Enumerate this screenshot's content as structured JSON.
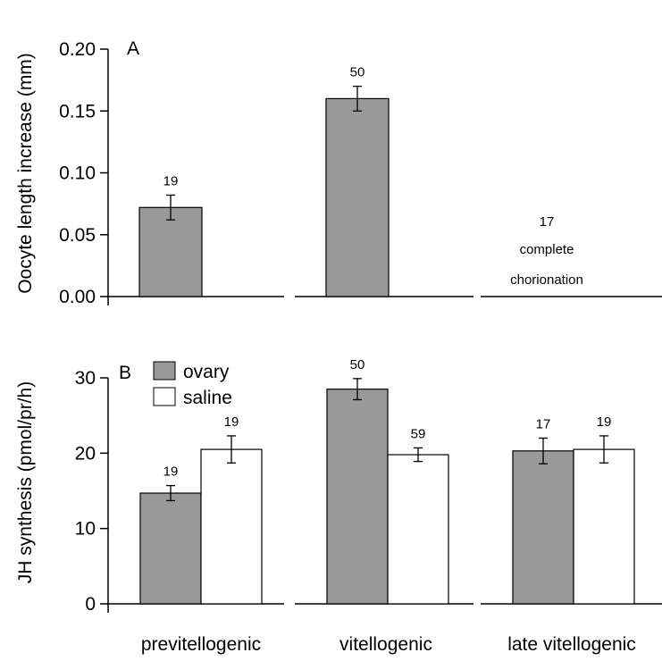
{
  "chart_data": [
    {
      "type": "bar",
      "panel_label": "A",
      "ylabel": "Oocyte length increase (mm)",
      "ylim": [
        0,
        0.2
      ],
      "yticks": [
        "0.00",
        "0.05",
        "0.10",
        "0.15",
        "0.20"
      ],
      "categories": [
        "previtellogenic",
        "vitellogenic",
        "late vitellogenic"
      ],
      "series": [
        {
          "values": [
            0.072,
            0.16,
            null
          ],
          "errors": [
            0.01,
            0.01,
            null
          ],
          "n": [
            "19",
            "50",
            "17"
          ],
          "color": "#999999"
        }
      ],
      "annotations": [
        "complete",
        "chorionation"
      ]
    },
    {
      "type": "bar",
      "panel_label": "B",
      "ylabel": "JH synthesis (pmol/pr/h)",
      "ylim": [
        0,
        30
      ],
      "yticks": [
        "0",
        "10",
        "20",
        "30"
      ],
      "categories": [
        "previtellogenic",
        "vitellogenic",
        "late vitellogenic"
      ],
      "legend_position": "top-left",
      "series": [
        {
          "name": "ovary",
          "values": [
            14.7,
            28.5,
            20.3
          ],
          "errors": [
            1.0,
            1.4,
            1.7
          ],
          "n": [
            "19",
            "50",
            "17"
          ],
          "color": "#999999"
        },
        {
          "name": "saline",
          "values": [
            20.5,
            19.8,
            20.5
          ],
          "errors": [
            1.8,
            0.9,
            1.8
          ],
          "n": [
            "19",
            "59",
            "19"
          ],
          "color": "#ffffff"
        }
      ]
    }
  ]
}
